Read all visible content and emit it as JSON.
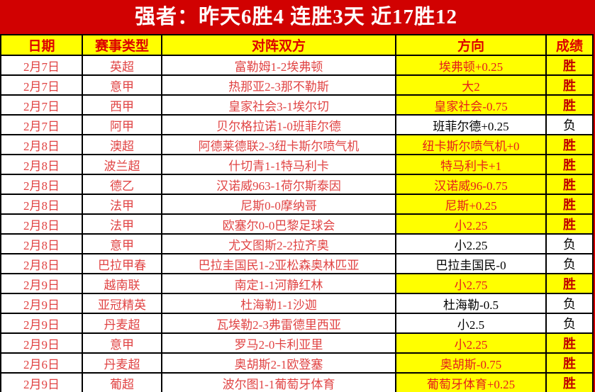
{
  "title": "强者：昨天6胜4  连胜3天  近17胜12",
  "colors": {
    "banner_red": "#d10101",
    "highlight_yellow": "#ffff00",
    "cell_text_red": "#e04343",
    "result_win_red": "#c00000",
    "header_text_red": "#dd0000"
  },
  "table": {
    "columns": [
      "日期",
      "赛事类型",
      "对阵双方",
      "方向",
      "成绩"
    ],
    "rows": [
      {
        "date": "2月7日",
        "league": "英超",
        "match": "富勒姆1-2埃弗顿",
        "direction": "埃弗顿+0.25",
        "result": "胜",
        "win": true
      },
      {
        "date": "2月7日",
        "league": "意甲",
        "match": "热那亚2-3那不勒斯",
        "direction": "大2",
        "result": "胜",
        "win": true
      },
      {
        "date": "2月7日",
        "league": "西甲",
        "match": "皇家社会3-1埃尔切",
        "direction": "皇家社会-0.75",
        "result": "胜",
        "win": true
      },
      {
        "date": "2月7日",
        "league": "阿甲",
        "match": "贝尔格拉诺1-0班菲尔德",
        "direction": "班菲尔德+0.25",
        "result": "负",
        "win": false
      },
      {
        "date": "2月8日",
        "league": "澳超",
        "match": "阿德莱德联2-3纽卡斯尔喷气机",
        "direction": "纽卡斯尔喷气机+0",
        "result": "胜",
        "win": true
      },
      {
        "date": "2月8日",
        "league": "波兰超",
        "match": "什切青1-1特马利卡",
        "direction": "特马利卡+1",
        "result": "胜",
        "win": true
      },
      {
        "date": "2月8日",
        "league": "德乙",
        "match": "汉诺威963-1荷尔斯泰因",
        "direction": "汉诺威96-0.75",
        "result": "胜",
        "win": true
      },
      {
        "date": "2月8日",
        "league": "法甲",
        "match": "尼斯0-0摩纳哥",
        "direction": "尼斯+0.25",
        "result": "胜",
        "win": true
      },
      {
        "date": "2月8日",
        "league": "法甲",
        "match": "欧塞尔0-0巴黎足球会",
        "direction": "小2.25",
        "result": "胜",
        "win": true
      },
      {
        "date": "2月8日",
        "league": "意甲",
        "match": "尤文图斯2-2拉齐奥",
        "direction": "小2.25",
        "result": "负",
        "win": false
      },
      {
        "date": "2月8日",
        "league": "巴拉甲春",
        "match": "巴拉圭国民1-2亚松森奥林匹亚",
        "direction": "巴拉圭国民-0",
        "result": "负",
        "win": false
      },
      {
        "date": "2月9日",
        "league": "越南联",
        "match": "南定1-1河静红林",
        "direction": "小2.75",
        "result": "胜",
        "win": true
      },
      {
        "date": "2月9日",
        "league": "亚冠精英",
        "match": "杜海勒1-1沙迦",
        "direction": "杜海勒-0.5",
        "result": "负",
        "win": false
      },
      {
        "date": "2月9日",
        "league": "丹麦超",
        "match": "瓦埃勒2-3弗雷德里西亚",
        "direction": "小2.5",
        "result": "负",
        "win": false
      },
      {
        "date": "2月9日",
        "league": "意甲",
        "match": "罗马2-0卡利亚里",
        "direction": "小2.25",
        "result": "胜",
        "win": true
      },
      {
        "date": "2月6日",
        "league": "丹麦超",
        "match": "奥胡斯2-1欧登塞",
        "direction": "奥胡斯-0.75",
        "result": "胜",
        "win": true
      },
      {
        "date": "2月9日",
        "league": "葡超",
        "match": "波尔图1-1葡萄牙体育",
        "direction": "葡萄牙体育+0.25",
        "result": "胜",
        "win": true
      }
    ]
  }
}
